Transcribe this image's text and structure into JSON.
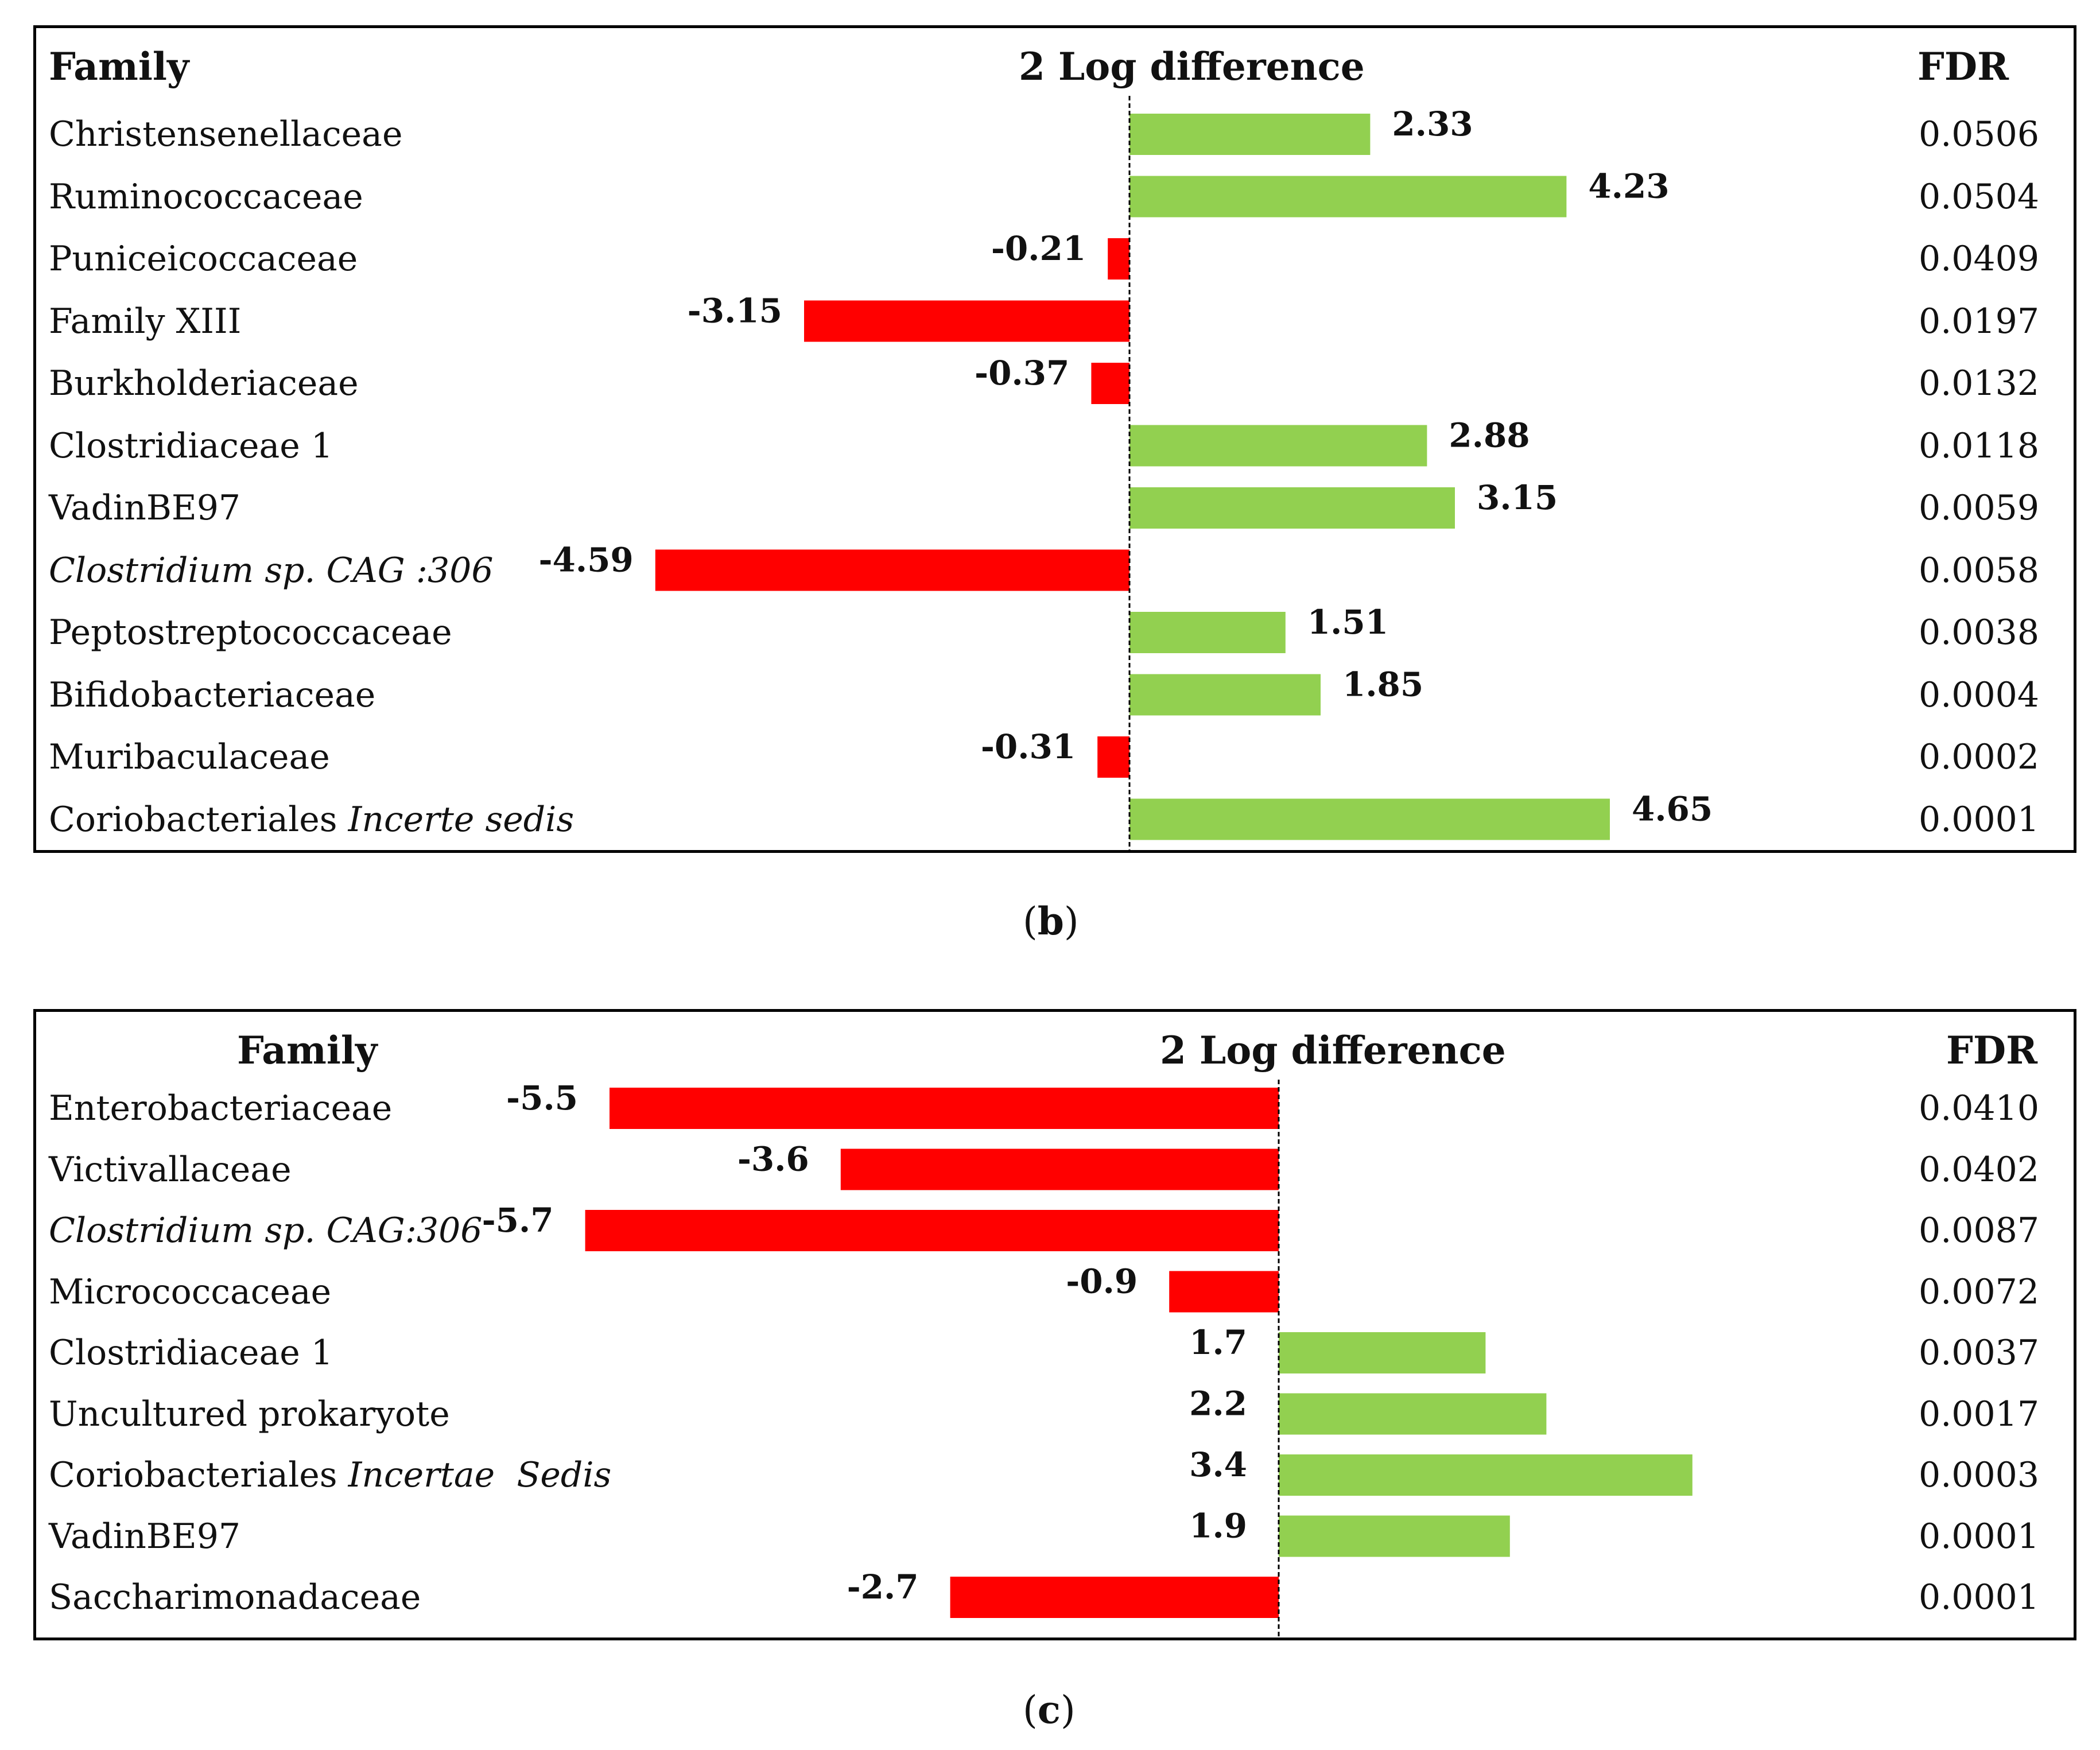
{
  "chart_data": [
    {
      "id": "b",
      "type": "bar",
      "orientation": "horizontal",
      "title": "",
      "caption_letter": "b",
      "headers": {
        "family": "Family",
        "value": "2 Log difference",
        "fdr": "FDR"
      },
      "xlim": [
        -4.59,
        4.65
      ],
      "rows": [
        {
          "family": "Christensenellaceae",
          "italic": "",
          "value": 2.33,
          "label": "2.33",
          "fdr": "0.0506"
        },
        {
          "family": "Ruminococcaceae",
          "italic": "",
          "value": 4.23,
          "label": "4.23",
          "fdr": "0.0504"
        },
        {
          "family": "Puniceicoccaceae",
          "italic": "",
          "value": -0.21,
          "label": "-0.21",
          "fdr": "0.0409"
        },
        {
          "family": "Family XIII",
          "italic": "",
          "value": -3.15,
          "label": "-3.15",
          "fdr": "0.0197"
        },
        {
          "family": "Burkholderiaceae",
          "italic": "",
          "value": -0.37,
          "label": "-0.37",
          "fdr": "0.0132"
        },
        {
          "family": "Clostridiaceae 1",
          "italic": "",
          "value": 2.88,
          "label": "2.88",
          "fdr": "0.0118"
        },
        {
          "family": "VadinBE97",
          "italic": "",
          "value": 3.15,
          "label": "3.15",
          "fdr": "0.0059"
        },
        {
          "family": "",
          "italic": "Clostridium sp. CAG :306",
          "value": -4.59,
          "label": "-4.59",
          "fdr": "0.0058"
        },
        {
          "family": "Peptostreptococcaceae",
          "italic": "",
          "value": 1.51,
          "label": "1.51",
          "fdr": "0.0038"
        },
        {
          "family": "Bifidobacteriaceae",
          "italic": "",
          "value": 1.85,
          "label": "1.85",
          "fdr": "0.0004"
        },
        {
          "family": "Muribaculaceae",
          "italic": "",
          "value": -0.31,
          "label": "-0.31",
          "fdr": "0.0002"
        },
        {
          "family": "Coriobacteriales ",
          "italic": "Incerte sedis",
          "value": 4.65,
          "label": "4.65",
          "fdr": "0.0001"
        }
      ]
    },
    {
      "id": "c",
      "type": "bar",
      "orientation": "horizontal",
      "title": "",
      "caption_letter": "c",
      "headers": {
        "family": "Family",
        "value": "2 Log difference",
        "fdr": "FDR"
      },
      "xlim": [
        -5.7,
        3.4
      ],
      "rows": [
        {
          "family": "Enterobacteriaceae",
          "italic": "",
          "value": -5.5,
          "label": "-5.5",
          "fdr": "0.0410"
        },
        {
          "family": "Victivallaceae",
          "italic": "",
          "value": -3.6,
          "label": "-3.6",
          "fdr": "0.0402"
        },
        {
          "family": "",
          "italic": "Clostridium sp. CAG:306",
          "value": -5.7,
          "label": "-5.7",
          "fdr": "0.0087"
        },
        {
          "family": "Micrococcaceae",
          "italic": "",
          "value": -0.9,
          "label": "-0.9",
          "fdr": "0.0072"
        },
        {
          "family": "Clostridiaceae 1",
          "italic": "",
          "value": 1.7,
          "label": "1.7",
          "fdr": "0.0037"
        },
        {
          "family": "Uncultured prokaryote",
          "italic": "",
          "value": 2.2,
          "label": "2.2",
          "fdr": "0.0017"
        },
        {
          "family": "Coriobacteriales ",
          "italic": "Incertae  Sedis",
          "value": 3.4,
          "label": "3.4",
          "fdr": "0.0003"
        },
        {
          "family": "VadinBE97",
          "italic": "",
          "value": 1.9,
          "label": "1.9",
          "fdr": "0.0001"
        },
        {
          "family": "Saccharimonadaceae",
          "italic": "",
          "value": -2.7,
          "label": "-2.7",
          "fdr": "0.0001"
        }
      ]
    }
  ],
  "colors": {
    "positive": "#92d050",
    "negative": "#ff0000",
    "axis": "#000000"
  }
}
